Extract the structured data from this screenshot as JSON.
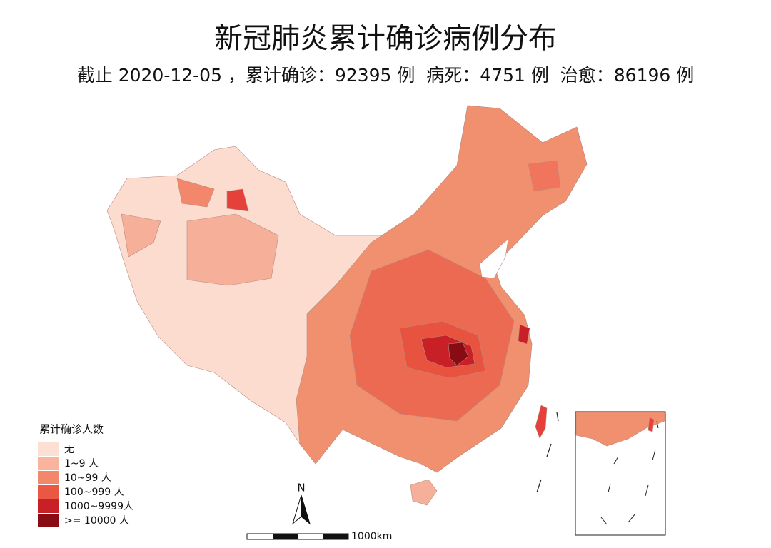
{
  "title": "新冠肺炎累计确诊病例分布",
  "subtitle": "截止 2020-12-05 ，累计确诊：92395 例  病死：4751 例  治愈：86196 例",
  "legend": {
    "title": "累计确诊人数",
    "items": [
      {
        "label": "无",
        "color": "#fde0d3"
      },
      {
        "label": "1~9 人",
        "color": "#f8b49c"
      },
      {
        "label": "10~99 人",
        "color": "#f3876c"
      },
      {
        "label": "100~999 人",
        "color": "#ea5844"
      },
      {
        "label": "1000~9999人",
        "color": "#c91f26"
      },
      {
        "label": ">= 10000 人",
        "color": "#870c14"
      }
    ]
  },
  "north": "N",
  "scale": "1000km"
}
